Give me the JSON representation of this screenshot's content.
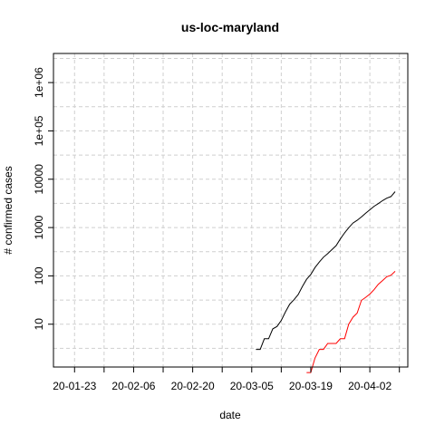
{
  "chart_data": {
    "type": "line",
    "title": "us-loc-maryland",
    "xlabel": "date",
    "ylabel": "# confirmed cases",
    "y_scale": "log",
    "grid": true,
    "x_range": [
      "2020-01-18",
      "2020-04-11"
    ],
    "y_range": [
      1.3,
      4000000
    ],
    "x_ticks": [
      {
        "date": "2020-01-23",
        "label": "20-01-23"
      },
      {
        "date": "2020-01-30",
        "label": ""
      },
      {
        "date": "2020-02-06",
        "label": "20-02-06"
      },
      {
        "date": "2020-02-13",
        "label": ""
      },
      {
        "date": "2020-02-20",
        "label": "20-02-20"
      },
      {
        "date": "2020-02-27",
        "label": ""
      },
      {
        "date": "2020-03-05",
        "label": "20-03-05"
      },
      {
        "date": "2020-03-12",
        "label": ""
      },
      {
        "date": "2020-03-19",
        "label": "20-03-19"
      },
      {
        "date": "2020-03-26",
        "label": ""
      },
      {
        "date": "2020-04-02",
        "label": "20-04-02"
      },
      {
        "date": "2020-04-09",
        "label": ""
      }
    ],
    "y_ticks": [
      {
        "value": 10,
        "label": "10"
      },
      {
        "value": 100,
        "label": "100"
      },
      {
        "value": 1000,
        "label": "1000"
      },
      {
        "value": 10000,
        "label": "10000"
      },
      {
        "value": 100000,
        "label": "1e+05"
      },
      {
        "value": 1000000,
        "label": "1e+06"
      }
    ],
    "series": [
      {
        "color": "#000000",
        "points": [
          [
            "2020-03-06",
            3
          ],
          [
            "2020-03-07",
            3
          ],
          [
            "2020-03-08",
            5
          ],
          [
            "2020-03-09",
            5
          ],
          [
            "2020-03-10",
            8
          ],
          [
            "2020-03-11",
            9
          ],
          [
            "2020-03-12",
            12
          ],
          [
            "2020-03-13",
            18
          ],
          [
            "2020-03-14",
            26
          ],
          [
            "2020-03-15",
            32
          ],
          [
            "2020-03-16",
            41
          ],
          [
            "2020-03-17",
            60
          ],
          [
            "2020-03-18",
            85
          ],
          [
            "2020-03-19",
            107
          ],
          [
            "2020-03-20",
            149
          ],
          [
            "2020-03-21",
            193
          ],
          [
            "2020-03-22",
            244
          ],
          [
            "2020-03-23",
            288
          ],
          [
            "2020-03-24",
            349
          ],
          [
            "2020-03-25",
            423
          ],
          [
            "2020-03-26",
            580
          ],
          [
            "2020-03-27",
            774
          ],
          [
            "2020-03-28",
            992
          ],
          [
            "2020-03-29",
            1239
          ],
          [
            "2020-03-30",
            1413
          ],
          [
            "2020-03-31",
            1660
          ],
          [
            "2020-04-01",
            1985
          ],
          [
            "2020-04-02",
            2331
          ],
          [
            "2020-04-03",
            2758
          ],
          [
            "2020-04-04",
            3125
          ],
          [
            "2020-04-05",
            3609
          ],
          [
            "2020-04-06",
            4045
          ],
          [
            "2020-04-07",
            4371
          ],
          [
            "2020-04-08",
            5529
          ]
        ]
      },
      {
        "color": "#ff0000",
        "points": [
          [
            "2020-03-18",
            1
          ],
          [
            "2020-03-19",
            1
          ],
          [
            "2020-03-20",
            2
          ],
          [
            "2020-03-21",
            3
          ],
          [
            "2020-03-22",
            3
          ],
          [
            "2020-03-23",
            4
          ],
          [
            "2020-03-24",
            4
          ],
          [
            "2020-03-25",
            4
          ],
          [
            "2020-03-26",
            5
          ],
          [
            "2020-03-27",
            5
          ],
          [
            "2020-03-28",
            10
          ],
          [
            "2020-03-29",
            14
          ],
          [
            "2020-03-30",
            17
          ],
          [
            "2020-03-31",
            31
          ],
          [
            "2020-04-01",
            36
          ],
          [
            "2020-04-02",
            42
          ],
          [
            "2020-04-03",
            52
          ],
          [
            "2020-04-04",
            67
          ],
          [
            "2020-04-05",
            80
          ],
          [
            "2020-04-06",
            96
          ],
          [
            "2020-04-07",
            103
          ],
          [
            "2020-04-08",
            124
          ]
        ]
      }
    ]
  }
}
